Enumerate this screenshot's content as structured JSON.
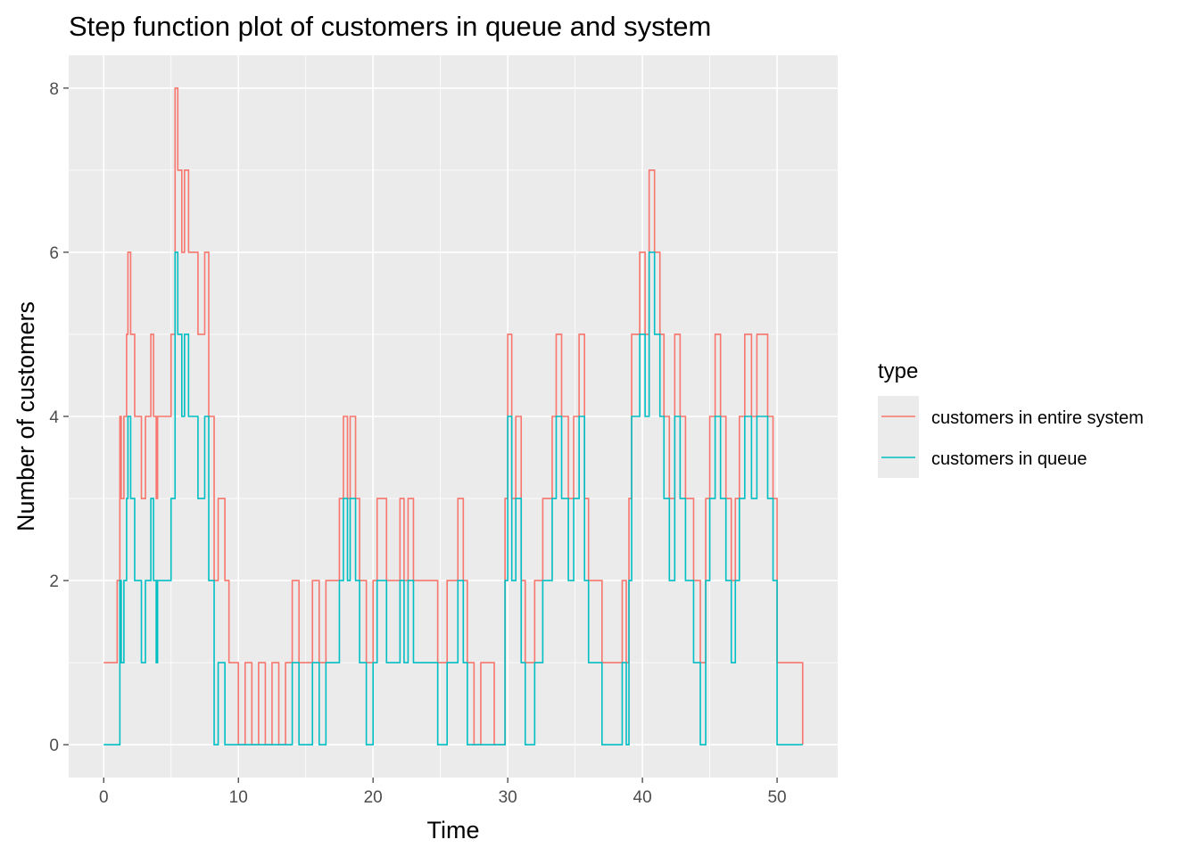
{
  "chart_data": {
    "type": "line",
    "step": true,
    "title": "Step function plot of customers in queue and system",
    "xlabel": "Time",
    "ylabel": "Number of customers",
    "xlim": [
      -2.6,
      54.5
    ],
    "ylim": [
      -0.4,
      8.4
    ],
    "xticks": [
      0,
      10,
      20,
      30,
      40,
      50
    ],
    "yticks": [
      0,
      2,
      4,
      6,
      8
    ],
    "grid": true,
    "panel_background": "#ebebeb",
    "legend": {
      "title": "type",
      "position": "right"
    },
    "series": [
      {
        "name": "customers in entire system",
        "color": "#F8766D",
        "x": [
          0.0,
          0.2,
          1.0,
          1.2,
          1.3,
          1.5,
          1.7,
          1.8,
          2.0,
          2.3,
          2.8,
          3.1,
          3.5,
          3.7,
          3.9,
          4.0,
          5.0,
          5.3,
          5.5,
          5.8,
          6.0,
          6.3,
          7.0,
          7.5,
          7.8,
          8.2,
          8.5,
          9.0,
          9.3,
          10.0,
          10.5,
          11.0,
          11.5,
          12.0,
          12.5,
          13.0,
          13.5,
          14.0,
          14.5,
          15.0,
          15.5,
          16.0,
          16.5,
          17.0,
          17.5,
          17.8,
          18.1,
          18.3,
          18.7,
          19.0,
          19.5,
          20.0,
          20.3,
          21.0,
          22.0,
          22.3,
          22.6,
          23.0,
          24.0,
          24.8,
          25.5,
          26.0,
          26.3,
          26.7,
          27.0,
          27.5,
          28.0,
          29.0,
          29.8,
          30.0,
          30.3,
          30.6,
          31.0,
          31.3,
          32.0,
          32.6,
          33.3,
          33.6,
          34.0,
          34.5,
          34.9,
          35.3,
          35.7,
          36.0,
          37.0,
          38.0,
          38.5,
          38.8,
          39.0,
          39.2,
          39.8,
          40.2,
          40.5,
          40.9,
          41.3,
          41.6,
          42.0,
          42.4,
          42.8,
          43.2,
          43.8,
          44.3,
          44.7,
          45.0,
          45.4,
          45.8,
          46.2,
          46.6,
          46.9,
          47.2,
          47.6,
          48.1,
          48.5,
          48.9,
          49.3,
          49.7,
          50.0,
          50.5,
          51.0,
          51.9
        ],
        "y": [
          1,
          1,
          2,
          4,
          3,
          4,
          5,
          6,
          5,
          4,
          3,
          4,
          5,
          4,
          3,
          4,
          5,
          8,
          7,
          6,
          7,
          6,
          5,
          6,
          4,
          2,
          3,
          2,
          1,
          0,
          1,
          0,
          1,
          0,
          1,
          0,
          1,
          2,
          1,
          1,
          2,
          1,
          2,
          2,
          3,
          4,
          3,
          4,
          3,
          2,
          1,
          2,
          3,
          2,
          3,
          2,
          3,
          2,
          2,
          1,
          2,
          2,
          3,
          2,
          1,
          0,
          1,
          0,
          3,
          5,
          3,
          4,
          2,
          1,
          2,
          3,
          4,
          5,
          4,
          3,
          4,
          5,
          3,
          2,
          1,
          1,
          2,
          1,
          3,
          5,
          6,
          5,
          7,
          6,
          5,
          4,
          3,
          5,
          4,
          3,
          2,
          1,
          3,
          4,
          5,
          4,
          3,
          2,
          3,
          4,
          5,
          4,
          5,
          5,
          4,
          3,
          1,
          1,
          1,
          0
        ]
      },
      {
        "name": "customers in queue",
        "color": "#00BFC4",
        "x": [
          0.0,
          0.2,
          1.0,
          1.2,
          1.3,
          1.5,
          1.7,
          1.8,
          2.0,
          2.3,
          2.8,
          3.1,
          3.5,
          3.7,
          3.9,
          4.0,
          5.0,
          5.3,
          5.5,
          5.8,
          6.0,
          6.3,
          7.0,
          7.5,
          7.8,
          8.2,
          8.5,
          9.0,
          9.3,
          10.0,
          10.5,
          11.0,
          11.5,
          12.0,
          12.5,
          13.0,
          13.5,
          14.0,
          14.5,
          15.0,
          15.5,
          16.0,
          16.5,
          17.0,
          17.5,
          17.8,
          18.1,
          18.3,
          18.7,
          19.0,
          19.5,
          20.0,
          20.3,
          21.0,
          22.0,
          22.3,
          22.6,
          23.0,
          24.0,
          24.8,
          25.5,
          26.0,
          26.3,
          26.7,
          27.0,
          27.5,
          28.0,
          29.0,
          29.8,
          30.0,
          30.3,
          30.6,
          31.0,
          31.3,
          32.0,
          32.6,
          33.3,
          33.6,
          34.0,
          34.5,
          34.9,
          35.3,
          35.7,
          36.0,
          37.0,
          38.0,
          38.5,
          38.8,
          39.0,
          39.2,
          39.8,
          40.2,
          40.5,
          40.9,
          41.3,
          41.6,
          42.0,
          42.4,
          42.8,
          43.2,
          43.8,
          44.3,
          44.7,
          45.0,
          45.4,
          45.8,
          46.2,
          46.6,
          46.9,
          47.2,
          47.6,
          48.1,
          48.5,
          48.9,
          49.3,
          49.7,
          50.0,
          50.5,
          51.0,
          51.9
        ],
        "y": [
          0,
          0,
          0,
          2,
          1,
          2,
          3,
          4,
          3,
          2,
          1,
          2,
          3,
          2,
          1,
          2,
          3,
          6,
          5,
          4,
          5,
          4,
          3,
          4,
          2,
          0,
          1,
          0,
          0,
          0,
          0,
          0,
          0,
          0,
          0,
          0,
          0,
          1,
          0,
          0,
          1,
          0,
          1,
          1,
          2,
          3,
          2,
          3,
          2,
          1,
          0,
          1,
          2,
          1,
          2,
          1,
          2,
          1,
          1,
          0,
          1,
          1,
          2,
          1,
          0,
          0,
          0,
          0,
          2,
          4,
          2,
          3,
          1,
          0,
          1,
          2,
          3,
          4,
          3,
          2,
          3,
          4,
          2,
          1,
          0,
          0,
          1,
          0,
          2,
          4,
          5,
          4,
          6,
          5,
          4,
          3,
          2,
          4,
          3,
          2,
          1,
          0,
          2,
          3,
          4,
          3,
          2,
          1,
          2,
          3,
          4,
          3,
          4,
          4,
          3,
          2,
          0,
          0,
          0,
          0
        ]
      }
    ]
  }
}
